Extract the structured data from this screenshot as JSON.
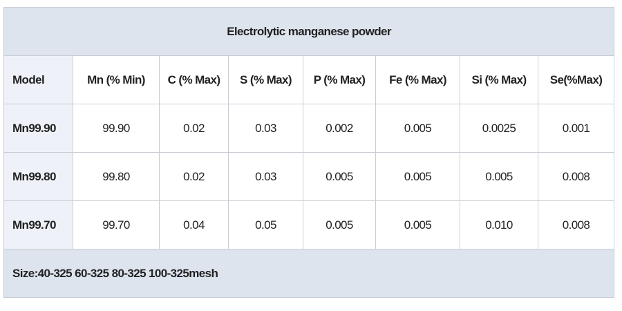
{
  "table": {
    "title": "Electrolytic manganese powder",
    "header": [
      "Model",
      "Mn (% Min)",
      "C (% Max)",
      "S (% Max)",
      "P (% Max)",
      "Fe (% Max)",
      "Si (% Max)",
      "Se(%Max)"
    ],
    "rows": [
      [
        "Mn99.90",
        "99.90",
        "0.02",
        "0.03",
        "0.002",
        "0.005",
        "0.0025",
        "0.001"
      ],
      [
        "Mn99.80",
        "99.80",
        "0.02",
        "0.03",
        "0.005",
        "0.005",
        "0.005",
        "0.008"
      ],
      [
        "Mn99.70",
        "99.70",
        "0.04",
        "0.05",
        "0.005",
        "0.005",
        "0.010",
        "0.008"
      ]
    ],
    "footer": "Size:40-325 60-325 80-325 100-325mesh"
  }
}
